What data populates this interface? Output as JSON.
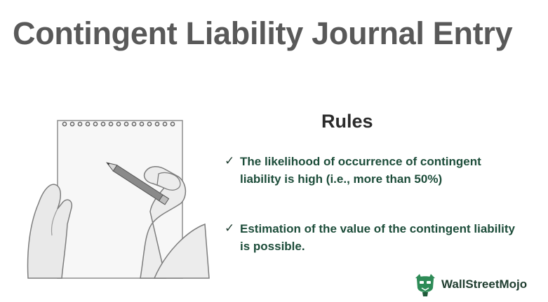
{
  "header": {
    "title": "Contingent Liability Journal Entry"
  },
  "rules": {
    "heading": "Rules",
    "items": [
      {
        "text": "The likelihood of occurrence of contingent liability is high (i.e., more than 50%)"
      },
      {
        "text": "Estimation of the value of the contingent liability is possible."
      }
    ],
    "check_symbol": "✓"
  },
  "brand": {
    "name": "WallStreetMojo",
    "icon": "mascot-logo-icon"
  },
  "illustration": {
    "icon": "notepad-writing-icon"
  },
  "colors": {
    "title": "#595959",
    "rule_text": "#1d4d3a",
    "brand_green": "#2e8b57"
  }
}
